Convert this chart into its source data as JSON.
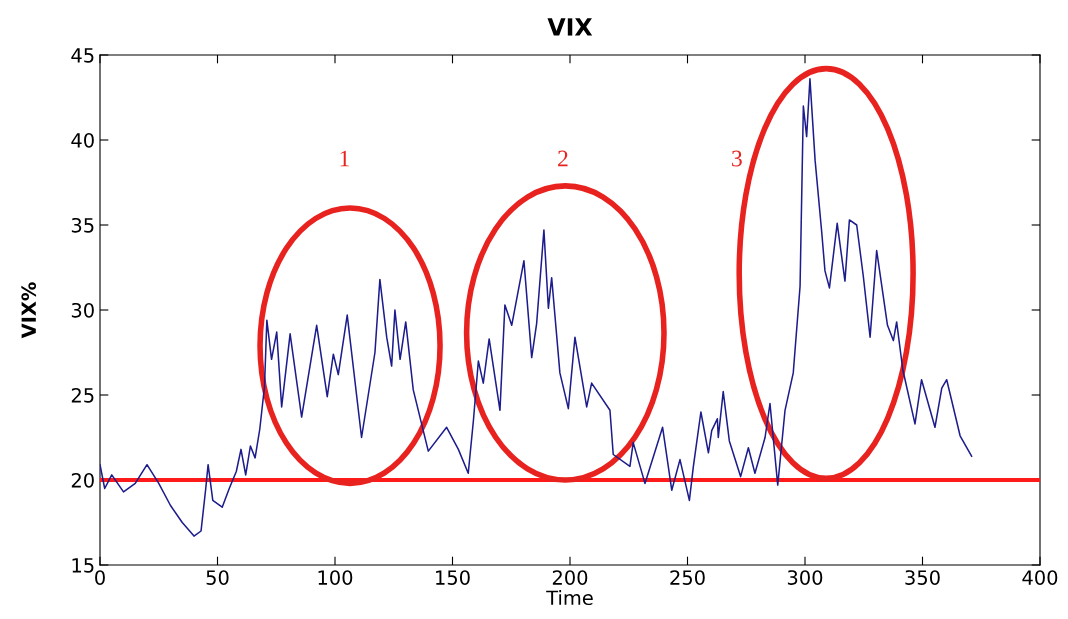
{
  "chart_data": {
    "type": "line",
    "title": "VIX",
    "xlabel": "Time",
    "ylabel": "VIX%",
    "xlim": [
      0,
      400
    ],
    "xticks": [
      0,
      50,
      100,
      150,
      200,
      250,
      300,
      350,
      400
    ],
    "ylim": [
      15,
      45
    ],
    "yticks": [
      15,
      20,
      25,
      30,
      35,
      40,
      45
    ],
    "grid": false,
    "legend": false,
    "marker": "none",
    "line_style": "solid",
    "series": [
      {
        "color": "#1c1c8c",
        "x": [
          0,
          2,
          5,
          10,
          15,
          20,
          25,
          30,
          35,
          40,
          43,
          45,
          46,
          48,
          52,
          55,
          58,
          60,
          62,
          64,
          66,
          68,
          70,
          71,
          73,
          75.2,
          77.3,
          80.9,
          85.8,
          92.2,
          96.7,
          99.3,
          101.4,
          105.2,
          111.3,
          117,
          119.1,
          122,
          124.1,
          125.5,
          127.7,
          130.1,
          133.3,
          139.7,
          147.5,
          152.5,
          156.7,
          158.9,
          161,
          163.1,
          165.6,
          170.2,
          172.3,
          175.2,
          180.4,
          183.7,
          185.8,
          188.9,
          190.8,
          192.2,
          195.7,
          199.3,
          202.1,
          207.1,
          209.2,
          217,
          218.4,
          225.5,
          226.9,
          231.9,
          239.4,
          243.3,
          246.8,
          250.8,
          252.5,
          255.7,
          258.9,
          260.3,
          262.7,
          263.1,
          265.2,
          267.8,
          272.6,
          275.9,
          278.7,
          283,
          285.1,
          288.4,
          291.5,
          295,
          297.9,
          299.3,
          300.7,
          302.1,
          304.3,
          307.1,
          308.5,
          310.4,
          313.7,
          317,
          318.9,
          322,
          324.8,
          327.7,
          330.5,
          335.1,
          337.6,
          339,
          341.6,
          346.8,
          349.6,
          355.3,
          358.2,
          360.3,
          366,
          370.9
        ],
        "values": [
          20.9,
          19.5,
          20.3,
          19.3,
          19.8,
          20.9,
          19.8,
          18.5,
          17.5,
          16.7,
          17.0,
          19.5,
          20.9,
          18.8,
          18.4,
          19.5,
          20.5,
          21.8,
          20.3,
          22.0,
          21.3,
          23.0,
          25.5,
          29.4,
          27.1,
          28.7,
          24.3,
          28.6,
          23.7,
          29.1,
          24.9,
          27.4,
          26.2,
          29.7,
          22.5,
          27.5,
          31.8,
          28.4,
          26.7,
          30.0,
          27.1,
          29.3,
          25.3,
          21.7,
          23.1,
          21.8,
          20.4,
          23.5,
          27.0,
          25.7,
          28.3,
          24.1,
          30.3,
          29.1,
          32.9,
          27.2,
          29.2,
          34.7,
          30.1,
          31.9,
          26.3,
          24.2,
          28.4,
          24.3,
          25.7,
          24.1,
          21.5,
          20.8,
          22.2,
          19.8,
          23.1,
          19.4,
          21.2,
          18.8,
          20.8,
          24.0,
          21.6,
          22.9,
          23.6,
          22.5,
          25.2,
          22.3,
          20.2,
          21.9,
          20.4,
          22.5,
          24.5,
          19.7,
          24.1,
          26.3,
          31.4,
          42.0,
          40.2,
          43.6,
          38.8,
          34.6,
          32.3,
          31.3,
          35.1,
          31.7,
          35.3,
          35.0,
          32.0,
          28.4,
          33.5,
          29.1,
          28.2,
          29.3,
          26.5,
          23.3,
          25.9,
          23.1,
          25.4,
          25.9,
          22.6,
          21.4
        ]
      }
    ],
    "ref_lines": [
      {
        "axis": "y",
        "value": 20,
        "color": "#ff1a1a",
        "line_style": "solid"
      }
    ],
    "annotations": [
      "1",
      "2",
      "3"
    ]
  }
}
